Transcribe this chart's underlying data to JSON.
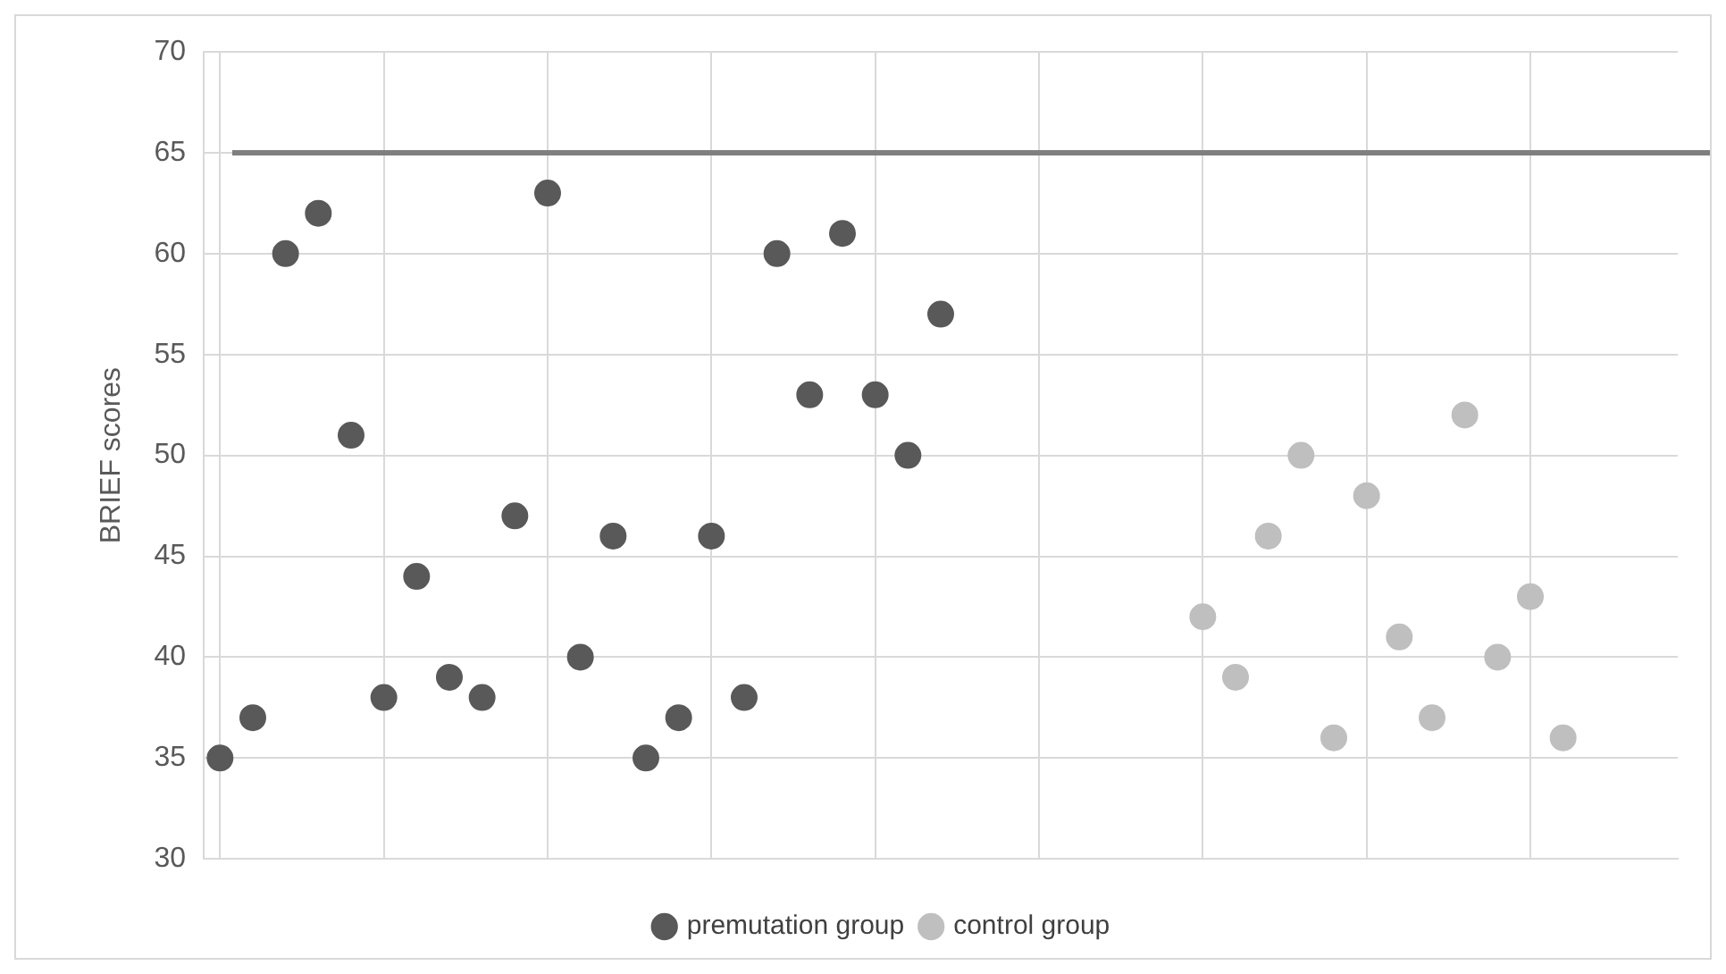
{
  "chart_data": {
    "type": "scatter",
    "ylabel": "BRIEF scores",
    "categories": [
      null,
      null,
      null,
      null,
      null,
      null,
      null,
      null,
      null,
      null,
      null,
      null,
      null,
      null,
      null,
      null,
      null,
      null,
      null,
      null,
      null,
      null,
      null,
      null,
      null,
      null,
      null,
      null,
      null,
      null,
      null,
      null,
      null,
      null,
      null,
      null,
      null,
      null,
      null,
      null,
      null,
      null,
      null,
      null,
      null
    ],
    "ylim": [
      30,
      70
    ],
    "yticks": [
      30,
      35,
      40,
      45,
      50,
      55,
      60,
      65,
      70
    ],
    "grid": true,
    "legend": "bottom",
    "marker": "circle",
    "series": [
      {
        "name": "premutation group",
        "color": "#595959",
        "values": [
          35,
          37,
          60,
          62,
          51,
          38,
          44,
          39,
          38,
          47,
          63,
          40,
          46,
          35,
          37,
          46,
          38,
          60,
          53,
          61,
          53,
          50,
          57,
          null,
          null,
          null,
          null,
          null,
          null,
          null,
          null,
          null,
          null,
          null,
          null,
          null,
          null,
          null,
          null,
          null,
          null,
          null,
          null,
          null,
          null
        ]
      },
      {
        "name": "control group",
        "color": "#bfbfbf",
        "values": [
          null,
          null,
          null,
          null,
          null,
          null,
          null,
          null,
          null,
          null,
          null,
          null,
          null,
          null,
          null,
          null,
          null,
          null,
          null,
          null,
          null,
          null,
          null,
          null,
          null,
          null,
          null,
          null,
          null,
          null,
          42,
          39,
          46,
          50,
          36,
          48,
          41,
          37,
          52,
          40,
          43,
          36,
          null,
          null,
          null
        ]
      }
    ],
    "ref_lines": [
      {
        "axis": "y",
        "value": 65,
        "color": "#7f7f7f"
      }
    ]
  }
}
